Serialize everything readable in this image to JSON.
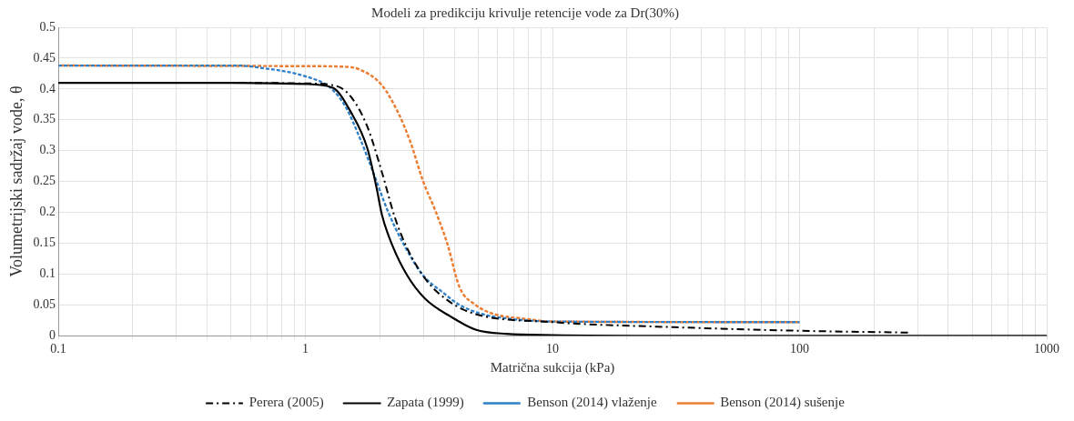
{
  "chart_data": {
    "type": "line",
    "title": "Modeli za predikciju krivulje retencije vode za Dr(30%)",
    "xlabel": "Matrična sukcija (kPa)",
    "ylabel": "Volumetrijski sadržaj vode, θ",
    "log": "x",
    "grid": true,
    "legend": "bottom",
    "marker": "none",
    "xlim": [
      0.1,
      1000
    ],
    "xticks": [
      0.1,
      {
        "value": 0.2,
        "label": null
      },
      {
        "value": 0.3,
        "label": null
      },
      {
        "value": 0.4,
        "label": null
      },
      {
        "value": 0.5,
        "label": null
      },
      {
        "value": 0.6,
        "label": null
      },
      {
        "value": 0.7,
        "label": null
      },
      {
        "value": 0.8,
        "label": null
      },
      {
        "value": 0.9,
        "label": null
      },
      1,
      {
        "value": 2,
        "label": null
      },
      {
        "value": 3,
        "label": null
      },
      {
        "value": 4,
        "label": null
      },
      {
        "value": 5,
        "label": null
      },
      {
        "value": 6,
        "label": null
      },
      {
        "value": 7,
        "label": null
      },
      {
        "value": 8,
        "label": null
      },
      {
        "value": 9,
        "label": null
      },
      10,
      {
        "value": 20,
        "label": null
      },
      {
        "value": 30,
        "label": null
      },
      {
        "value": 40,
        "label": null
      },
      {
        "value": 50,
        "label": null
      },
      {
        "value": 60,
        "label": null
      },
      {
        "value": 70,
        "label": null
      },
      {
        "value": 80,
        "label": null
      },
      {
        "value": 90,
        "label": null
      },
      100,
      {
        "value": 200,
        "label": null
      },
      {
        "value": 300,
        "label": null
      },
      {
        "value": 400,
        "label": null
      },
      {
        "value": 500,
        "label": null
      },
      {
        "value": 600,
        "label": null
      },
      {
        "value": 700,
        "label": null
      },
      {
        "value": 800,
        "label": null
      },
      {
        "value": 900,
        "label": null
      },
      1000
    ],
    "ylim": [
      0,
      0.5
    ],
    "yticks": [
      0,
      0.05,
      0.1,
      0.15,
      0.2,
      0.25,
      0.3,
      0.35,
      0.4,
      0.45,
      0.5
    ],
    "series": [
      {
        "name": "Perera (2005)",
        "color": "#000000",
        "line_style": "dashdot",
        "x": [
          0.1,
          0.5,
          1,
          1.33,
          1.53,
          1.78,
          2.04,
          2.3,
          2.58,
          3.1,
          3.87,
          4.88,
          10,
          30,
          100,
          279
        ],
        "values": [
          0.41,
          0.41,
          0.409,
          0.405,
          0.387,
          0.339,
          0.265,
          0.192,
          0.142,
          0.089,
          0.054,
          0.035,
          0.022,
          0.014,
          0.008,
          0.005
        ]
      },
      {
        "name": "Zapata (1999)",
        "color": "#000000",
        "line_style": "solid",
        "x": [
          0.1,
          0.5,
          1,
          1.29,
          1.53,
          1.78,
          1.94,
          2.04,
          2.24,
          2.58,
          3.05,
          3.87,
          4.88,
          6.5,
          10,
          30,
          1000
        ],
        "values": [
          0.41,
          0.41,
          0.408,
          0.402,
          0.362,
          0.304,
          0.24,
          0.196,
          0.148,
          0.098,
          0.06,
          0.031,
          0.01,
          0.003,
          0.001,
          0,
          0
        ]
      },
      {
        "name": "Benson (2014) vlaženje",
        "color": "#2e7fc8",
        "line_style": "dashed",
        "x": [
          0.1,
          0.53,
          0.64,
          0.99,
          1.26,
          1.45,
          1.67,
          1.88,
          2.16,
          2.5,
          2.99,
          3.63,
          4.2,
          5.2,
          6.5,
          10,
          100
        ],
        "values": [
          0.438,
          0.438,
          0.435,
          0.421,
          0.402,
          0.372,
          0.318,
          0.265,
          0.201,
          0.148,
          0.098,
          0.069,
          0.05,
          0.035,
          0.028,
          0.023,
          0.022
        ]
      },
      {
        "name": "Benson (2014) sušenje",
        "color": "#ed7d31",
        "line_style": "dashed",
        "x": [
          0.1,
          1,
          1.45,
          1.67,
          2.04,
          2.37,
          2.66,
          2.99,
          3.37,
          3.76,
          4.2,
          4.88,
          5.8,
          7.5,
          10,
          100
        ],
        "values": [
          0.438,
          0.437,
          0.436,
          0.431,
          0.406,
          0.362,
          0.314,
          0.251,
          0.201,
          0.148,
          0.079,
          0.05,
          0.035,
          0.028,
          0.023,
          0.022
        ]
      }
    ]
  }
}
